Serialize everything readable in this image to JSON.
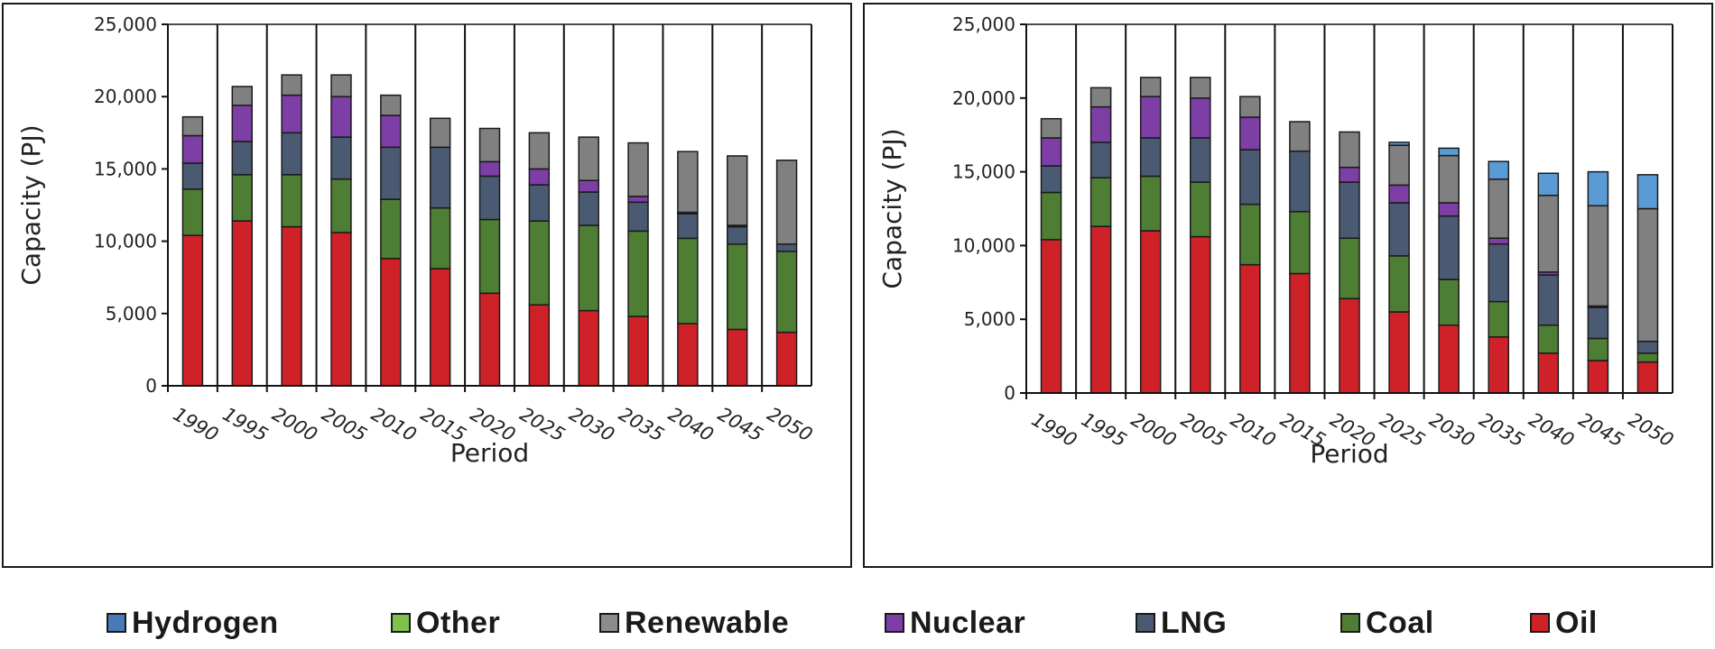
{
  "chart_data": [
    {
      "type": "bar",
      "stacked": true,
      "title": "",
      "xlabel": "Period",
      "ylabel": "Capacity (PJ)",
      "ylim": [
        0,
        25000
      ],
      "yticks": [
        0,
        5000,
        10000,
        15000,
        20000,
        25000
      ],
      "ytick_labels": [
        "0",
        "5,000",
        "10,000",
        "15,000",
        "20,000",
        "25,000"
      ],
      "grid": "vertical",
      "categories": [
        "1990",
        "1995",
        "2000",
        "2005",
        "2010",
        "2015",
        "2020",
        "2025",
        "2030",
        "2035",
        "2040",
        "2045",
        "2050"
      ],
      "series": [
        {
          "name": "Oil",
          "values": [
            10400,
            11400,
            11000,
            10600,
            8800,
            8100,
            6400,
            5600,
            5200,
            4800,
            4300,
            3900,
            3700
          ]
        },
        {
          "name": "Coal",
          "values": [
            3200,
            3200,
            3600,
            3700,
            4100,
            4200,
            5100,
            5800,
            5900,
            5900,
            5900,
            5900,
            5600
          ]
        },
        {
          "name": "LNG",
          "values": [
            1800,
            2300,
            2900,
            2900,
            3600,
            4200,
            3000,
            2500,
            2300,
            2000,
            1700,
            1200,
            500
          ]
        },
        {
          "name": "Nuclear",
          "values": [
            1900,
            2500,
            2600,
            2800,
            2200,
            0,
            1000,
            1100,
            800,
            400,
            100,
            100,
            0
          ]
        },
        {
          "name": "Renewable",
          "values": [
            1300,
            1300,
            1400,
            1500,
            1400,
            2000,
            2300,
            2500,
            3000,
            3700,
            4200,
            4800,
            5800
          ]
        },
        {
          "name": "Other",
          "values": [
            0,
            0,
            0,
            0,
            0,
            0,
            0,
            0,
            0,
            0,
            0,
            0,
            0
          ]
        },
        {
          "name": "Hydrogen",
          "values": [
            0,
            0,
            0,
            0,
            0,
            0,
            0,
            0,
            0,
            0,
            0,
            0,
            0
          ]
        }
      ]
    },
    {
      "type": "bar",
      "stacked": true,
      "title": "",
      "xlabel": "Period",
      "ylabel": "Capacity (PJ)",
      "ylim": [
        0,
        25000
      ],
      "yticks": [
        0,
        5000,
        10000,
        15000,
        20000,
        25000
      ],
      "ytick_labels": [
        "0",
        "5,000",
        "10,000",
        "15,000",
        "20,000",
        "25,000"
      ],
      "grid": "vertical",
      "categories": [
        "1990",
        "1995",
        "2000",
        "2005",
        "2010",
        "2015",
        "2020",
        "2025",
        "2030",
        "2035",
        "2040",
        "2045",
        "2050"
      ],
      "series": [
        {
          "name": "Oil",
          "values": [
            10400,
            11300,
            11000,
            10600,
            8700,
            8100,
            6400,
            5500,
            4600,
            3800,
            2700,
            2200,
            2100
          ]
        },
        {
          "name": "Coal",
          "values": [
            3200,
            3300,
            3700,
            3700,
            4100,
            4200,
            4100,
            3800,
            3100,
            2400,
            1900,
            1500,
            600
          ]
        },
        {
          "name": "LNG",
          "values": [
            1800,
            2400,
            2600,
            3000,
            3700,
            4100,
            3800,
            3600,
            4300,
            3900,
            3400,
            2100,
            800
          ]
        },
        {
          "name": "Nuclear",
          "values": [
            1900,
            2400,
            2800,
            2700,
            2200,
            0,
            1000,
            1200,
            900,
            400,
            200,
            100,
            0
          ]
        },
        {
          "name": "Renewable",
          "values": [
            1300,
            1300,
            1300,
            1400,
            1400,
            2000,
            2400,
            2700,
            3200,
            4000,
            5200,
            6800,
            9000
          ]
        },
        {
          "name": "Other",
          "values": [
            0,
            0,
            0,
            0,
            0,
            0,
            0,
            0,
            0,
            0,
            0,
            0,
            0
          ]
        },
        {
          "name": "Hydrogen",
          "values": [
            0,
            0,
            0,
            0,
            0,
            0,
            0,
            200,
            500,
            1200,
            1500,
            2300,
            2300
          ]
        }
      ]
    }
  ],
  "legend": {
    "items": [
      {
        "name": "Hydrogen",
        "color": "#4a79b8"
      },
      {
        "name": "Other",
        "color": "#7fbf4e"
      },
      {
        "name": "Renewable",
        "color": "#8c8c8c"
      },
      {
        "name": "Nuclear",
        "color": "#7d3ea6"
      },
      {
        "name": "LNG",
        "color": "#4a5a73"
      },
      {
        "name": "Coal",
        "color": "#4e7d34"
      },
      {
        "name": "Oil",
        "color": "#cf2228"
      }
    ],
    "bar_colors": {
      "Oil": "#cf2228",
      "Coal": "#4e7d34",
      "LNG": "#4a5a73",
      "Nuclear": "#7d3ea6",
      "Renewable": "#808080",
      "Other": "#7fbf4e",
      "Hydrogen": "#5a9bd6"
    }
  }
}
